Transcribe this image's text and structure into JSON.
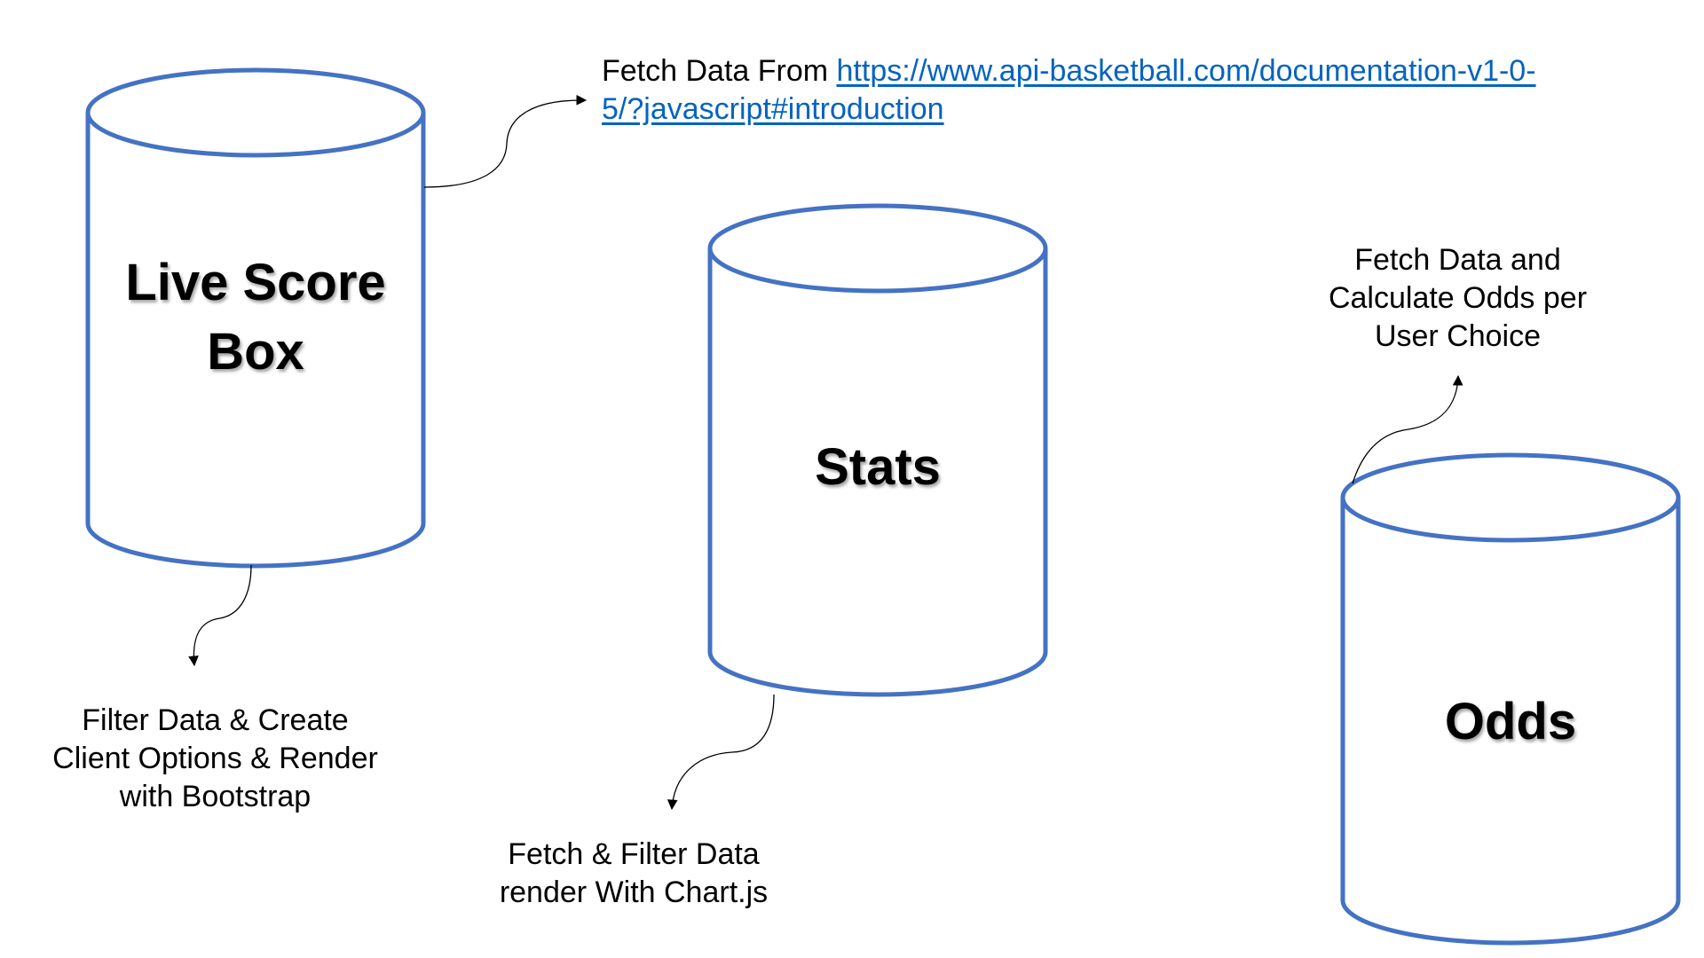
{
  "cylinders": {
    "live_score": {
      "title_line1": "Live Score",
      "title_line2": "Box"
    },
    "stats": {
      "title": "Stats"
    },
    "odds": {
      "title": "Odds"
    }
  },
  "annotations": {
    "fetch_from": {
      "prefix": "Fetch Data From ",
      "link_line1": "https://www.api-basketball.com/documentation-v1-0-",
      "link_line2": "5/?javascript#introduction"
    },
    "filter_data": {
      "line1": "Filter Data & Create",
      "line2": "Client Options &  Render",
      "line3": "with Bootstrap"
    },
    "fetch_filter": {
      "line1": "Fetch & Filter Data",
      "line2": "render With Chart.js"
    },
    "calc_odds": {
      "line1": "Fetch Data and",
      "line2": "Calculate Odds per",
      "line3": "User Choice"
    }
  },
  "colors": {
    "cylinder_stroke": "#4472c4",
    "link": "#0563c1",
    "connector": "#000000"
  }
}
